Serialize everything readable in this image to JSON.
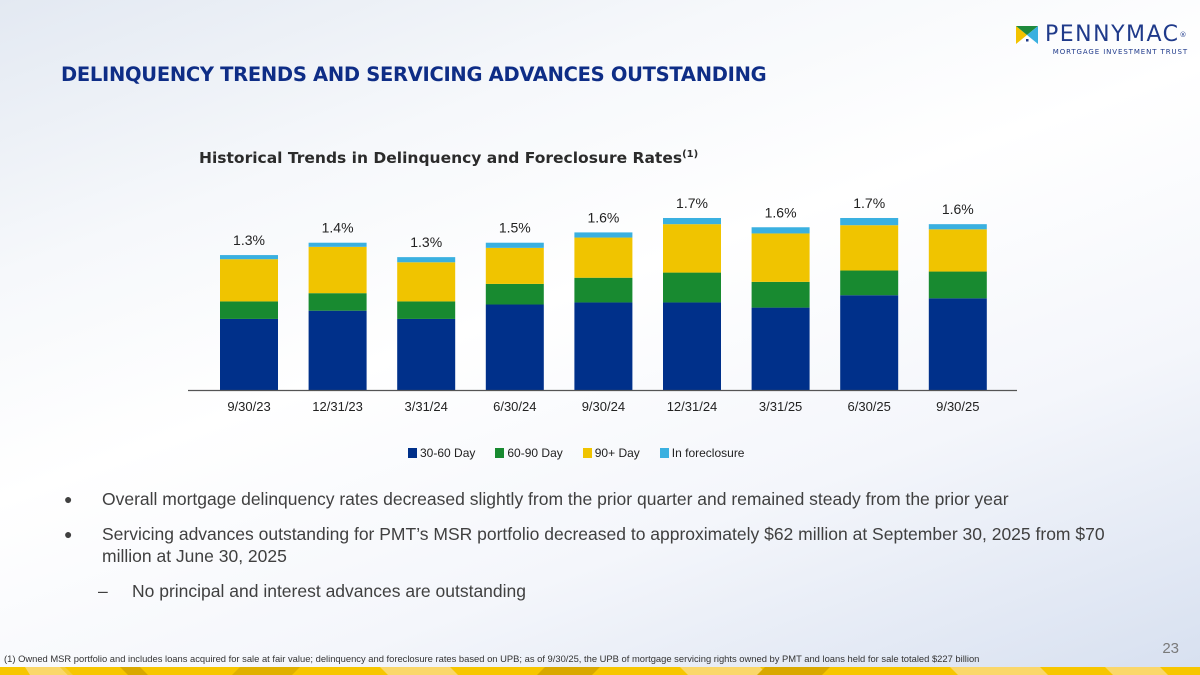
{
  "logo": {
    "name": "PENNYMAC",
    "registered": "®",
    "subtitle": "MORTGAGE INVESTMENT TRUST"
  },
  "page_title": "DELINQUENCY TRENDS AND SERVICING ADVANCES OUTSTANDING",
  "chart_title": {
    "text": "Historical Trends in Delinquency and Foreclosure Rates",
    "footnote_ref": "(1)"
  },
  "colors": {
    "title_blue": "#0e2d86",
    "d30_60": "#00308a",
    "d60_90": "#188a30",
    "d90plus": "#f0c400",
    "foreclosure": "#3ab0e0",
    "band_yellow": "#f7c600"
  },
  "chart_data": {
    "type": "bar",
    "stacked": true,
    "title": "Historical Trends in Delinquency and Foreclosure Rates(1)",
    "xlabel": "",
    "ylabel": "",
    "ylim": [
      0,
      1.8
    ],
    "grid": false,
    "legend_position": "bottom-center",
    "categories": [
      "9/30/23",
      "12/31/23",
      "3/31/24",
      "6/30/24",
      "9/30/24",
      "12/31/24",
      "3/31/25",
      "6/30/25",
      "9/30/25"
    ],
    "series": [
      {
        "name": "30-60 Day",
        "color": "#00308a",
        "values": [
          0.69,
          0.77,
          0.69,
          0.83,
          0.85,
          0.85,
          0.8,
          0.92,
          0.89
        ]
      },
      {
        "name": "60-90 Day",
        "color": "#188a30",
        "values": [
          0.17,
          0.17,
          0.17,
          0.2,
          0.24,
          0.29,
          0.25,
          0.24,
          0.26
        ]
      },
      {
        "name": "90+ Day",
        "color": "#f0c400",
        "values": [
          0.41,
          0.45,
          0.38,
          0.35,
          0.39,
          0.47,
          0.47,
          0.44,
          0.41
        ]
      },
      {
        "name": "In foreclosure",
        "color": "#3ab0e0",
        "values": [
          0.04,
          0.04,
          0.05,
          0.05,
          0.05,
          0.06,
          0.06,
          0.07,
          0.05
        ]
      }
    ],
    "totals_labels": [
      "1.3%",
      "1.4%",
      "1.3%",
      "1.5%",
      "1.6%",
      "1.7%",
      "1.6%",
      "1.7%",
      "1.6%"
    ]
  },
  "bullets": [
    {
      "text": "Overall mortgage delinquency rates decreased slightly from the prior quarter and remained steady from the prior year"
    },
    {
      "text": "Servicing advances outstanding for PMT’s MSR portfolio decreased to approximately $62 million at September 30, 2025 from $70 million at June 30, 2025"
    }
  ],
  "sub_bullets": [
    {
      "text": "No principal and interest advances are outstanding"
    }
  ],
  "bullet_glyph": "●",
  "dash_glyph": "–",
  "footnote": "(1) Owned MSR portfolio and includes loans acquired for sale at fair value; delinquency and foreclosure rates based on UPB; as of 9/30/25, the UPB of mortgage servicing rights owned by PMT and loans held for sale totaled $227 billion",
  "page_number": "23"
}
